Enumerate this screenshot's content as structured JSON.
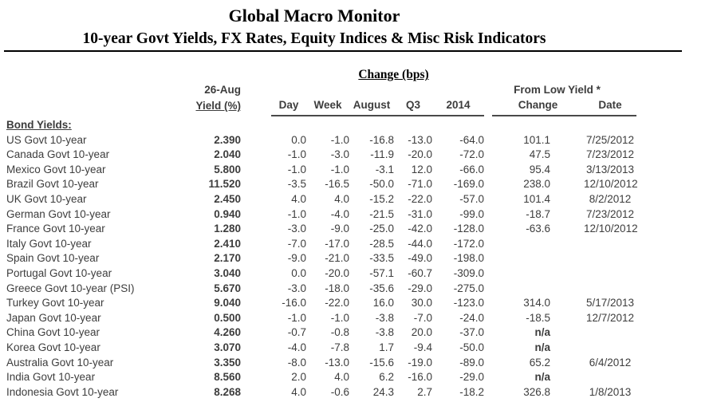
{
  "header": {
    "title": "Global Macro Monitor",
    "subtitle": "10-year Govt Yields, FX Rates, Equity Indices & Misc Risk Indicators"
  },
  "colors": {
    "text": "#3d3d3d",
    "title_text": "#000000",
    "rule_line": "#000000",
    "header_underline": "#4a4a4a"
  },
  "table": {
    "group_headers": {
      "change_bps": "Change (bps)",
      "from_low_yield": "From Low Yield *"
    },
    "col_headers": {
      "as_of_date": "26-Aug",
      "yield_pct": "Yield (%)",
      "day": "Day",
      "week": "Week",
      "august": "August",
      "q3": "Q3",
      "y2014": "2014",
      "change": "Change",
      "date": "Date"
    },
    "section_label": "Bond Yields:",
    "column_keys": [
      "name",
      "yield",
      "day",
      "week",
      "august",
      "q3",
      "y2014",
      "from_low_change",
      "from_low_date"
    ],
    "rows": [
      {
        "name": "US Govt 10-year",
        "yield": "2.390",
        "day": "0.0",
        "week": "-1.0",
        "august": "-16.8",
        "q3": "-13.0",
        "y2014": "-64.0",
        "from_low_change": "101.1",
        "from_low_date": "7/25/2012"
      },
      {
        "name": "Canada Govt 10-year",
        "yield": "2.040",
        "day": "-1.0",
        "week": "-3.0",
        "august": "-11.9",
        "q3": "-20.0",
        "y2014": "-72.0",
        "from_low_change": "47.5",
        "from_low_date": "7/23/2012"
      },
      {
        "name": "Mexico Govt 10-year",
        "yield": "5.800",
        "day": "-1.0",
        "week": "-1.0",
        "august": "-3.1",
        "q3": "12.0",
        "y2014": "-66.0",
        "from_low_change": "95.4",
        "from_low_date": "3/13/2013"
      },
      {
        "name": "Brazil Govt 10-year",
        "yield": "11.520",
        "day": "-3.5",
        "week": "-16.5",
        "august": "-50.0",
        "q3": "-71.0",
        "y2014": "-169.0",
        "from_low_change": "238.0",
        "from_low_date": "12/10/2012"
      },
      {
        "name": "UK Govt 10-year",
        "yield": "2.450",
        "day": "4.0",
        "week": "4.0",
        "august": "-15.2",
        "q3": "-22.0",
        "y2014": "-57.0",
        "from_low_change": "101.4",
        "from_low_date": "8/2/2012"
      },
      {
        "name": "German Govt 10-year",
        "yield": "0.940",
        "day": "-1.0",
        "week": "-4.0",
        "august": "-21.5",
        "q3": "-31.0",
        "y2014": "-99.0",
        "from_low_change": "-18.7",
        "from_low_date": "7/23/2012"
      },
      {
        "name": "France Govt 10-year",
        "yield": "1.280",
        "day": "-3.0",
        "week": "-9.0",
        "august": "-25.0",
        "q3": "-42.0",
        "y2014": "-128.0",
        "from_low_change": "-63.6",
        "from_low_date": "12/10/2012"
      },
      {
        "name": "Italy Govt 10-year",
        "yield": "2.410",
        "day": "-7.0",
        "week": "-17.0",
        "august": "-28.5",
        "q3": "-44.0",
        "y2014": "-172.0",
        "from_low_change": "",
        "from_low_date": ""
      },
      {
        "name": "Spain Govt 10-year",
        "yield": "2.170",
        "day": "-9.0",
        "week": "-21.0",
        "august": "-33.5",
        "q3": "-49.0",
        "y2014": "-198.0",
        "from_low_change": "",
        "from_low_date": ""
      },
      {
        "name": "Portugal Govt 10-year",
        "yield": "3.040",
        "day": "0.0",
        "week": "-20.0",
        "august": "-57.1",
        "q3": "-60.7",
        "y2014": "-309.0",
        "from_low_change": "",
        "from_low_date": ""
      },
      {
        "name": "Greece Govt 10-year (PSI)",
        "yield": "5.670",
        "day": "-3.0",
        "week": "-18.0",
        "august": "-35.6",
        "q3": "-29.0",
        "y2014": "-275.0",
        "from_low_change": "",
        "from_low_date": ""
      },
      {
        "name": "Turkey Govt 10-year",
        "yield": "9.040",
        "day": "-16.0",
        "week": "-22.0",
        "august": "16.0",
        "q3": "30.0",
        "y2014": "-123.0",
        "from_low_change": "314.0",
        "from_low_date": "5/17/2013"
      },
      {
        "name": "Japan Govt 10-year",
        "yield": "0.500",
        "day": "-1.0",
        "week": "-1.0",
        "august": "-3.8",
        "q3": "-7.0",
        "y2014": "-24.0",
        "from_low_change": "-18.5",
        "from_low_date": "12/7/2012"
      },
      {
        "name": "China Govt 10-year",
        "yield": "4.260",
        "day": "-0.7",
        "week": "-0.8",
        "august": "-3.8",
        "q3": "20.0",
        "y2014": "-37.0",
        "from_low_change": "n/a",
        "from_low_date": ""
      },
      {
        "name": "Korea Govt 10-year",
        "yield": "3.070",
        "day": "-4.0",
        "week": "-7.8",
        "august": "1.7",
        "q3": "-9.4",
        "y2014": "-50.0",
        "from_low_change": "n/a",
        "from_low_date": ""
      },
      {
        "name": "Australia Govt 10-year",
        "yield": "3.350",
        "day": "-8.0",
        "week": "-13.0",
        "august": "-15.6",
        "q3": "-19.0",
        "y2014": "-89.0",
        "from_low_change": "65.2",
        "from_low_date": "6/4/2012"
      },
      {
        "name": "India Govt 10-year",
        "yield": "8.560",
        "day": "2.0",
        "week": "4.0",
        "august": "6.2",
        "q3": "-16.0",
        "y2014": "-29.0",
        "from_low_change": "n/a",
        "from_low_date": ""
      },
      {
        "name": "Indonesia Govt 10-year",
        "yield": "8.268",
        "day": "4.0",
        "week": "-0.6",
        "august": "24.3",
        "q3": "2.7",
        "y2014": "-18.2",
        "from_low_change": "326.8",
        "from_low_date": "1/8/2013"
      }
    ]
  }
}
